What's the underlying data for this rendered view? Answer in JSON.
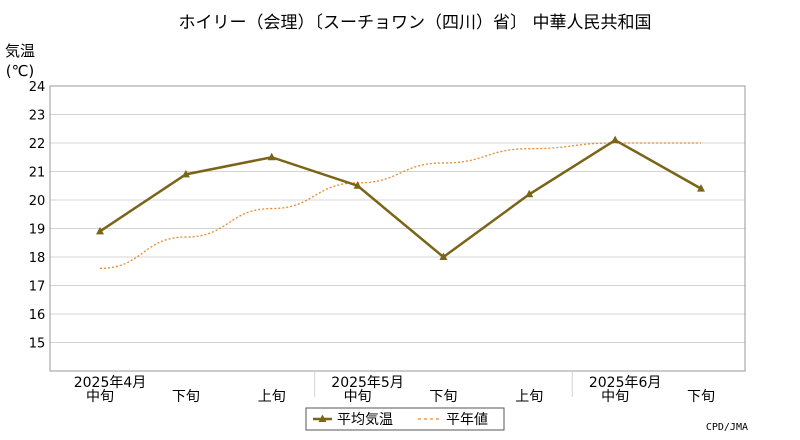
{
  "chart_data": {
    "type": "line",
    "title": "ホイリー（会理）〔スーチョワン（四川）省〕 中華人民共和国",
    "ylabel_line1": "気温",
    "ylabel_line2": "(℃)",
    "ylim": [
      14,
      24
    ],
    "yticks": [
      15,
      16,
      17,
      18,
      19,
      20,
      21,
      22,
      23,
      24
    ],
    "grid": true,
    "legend_position": "bottom-center",
    "x_periods": [
      "中旬",
      "下旬",
      "上旬",
      "中旬",
      "下旬",
      "上旬",
      "中旬",
      "下旬"
    ],
    "x_months": [
      {
        "label": "2025年4月",
        "index": 0
      },
      {
        "label": "2025年5月",
        "index": 3
      },
      {
        "label": "2025年6月",
        "index": 6
      }
    ],
    "series": [
      {
        "name": "平均気温",
        "values": [
          18.9,
          20.9,
          21.5,
          20.5,
          18.0,
          20.2,
          22.1,
          20.4
        ],
        "color": "#7a6417",
        "style": "solid-marker"
      },
      {
        "name": "平年値",
        "values": [
          17.6,
          18.7,
          19.7,
          20.6,
          21.3,
          21.8,
          22.0,
          22.0
        ],
        "color": "#e88a2c",
        "style": "dotted"
      }
    ],
    "credit": "CPD/JMA"
  }
}
